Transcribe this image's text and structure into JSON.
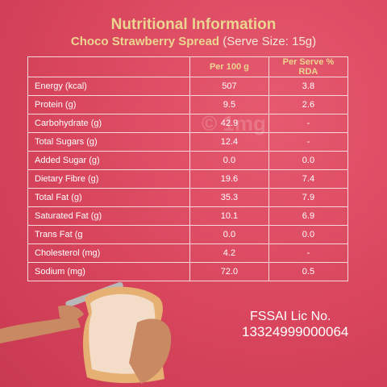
{
  "header": {
    "title": "Nutritional Information",
    "subtitle": "Choco Strawberry Spread",
    "serve_size": "(Serve Size: 15g)"
  },
  "watermark": "© 1mg",
  "table": {
    "columns": [
      "Per 100 g",
      "Per Serve % RDA"
    ],
    "rows": [
      [
        "Energy (kcal)",
        "507",
        "3.8"
      ],
      [
        "Protein (g)",
        "9.5",
        "2.6"
      ],
      [
        "Carbohydrate (g)",
        "42.9",
        "-"
      ],
      [
        "Total Sugars (g)",
        "12.4",
        "-"
      ],
      [
        "Added Sugar (g)",
        "0.0",
        "0.0"
      ],
      [
        "Dietary Fibre (g)",
        "19.6",
        "7.4"
      ],
      [
        "Total Fat (g)",
        "35.3",
        "7.9"
      ],
      [
        "Saturated Fat (g)",
        "10.1",
        "6.9"
      ],
      [
        "Trans Fat (g",
        "0.0",
        "0.0"
      ],
      [
        "Cholesterol (mg)",
        "4.2",
        "-"
      ],
      [
        "Sodium (mg)",
        "72.0",
        "0.5"
      ]
    ]
  },
  "footer": {
    "label": "FSSAI Lic No.",
    "number": "13324999000064"
  }
}
